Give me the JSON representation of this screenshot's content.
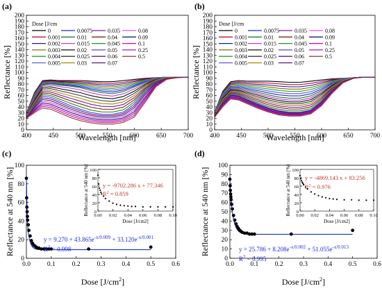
{
  "panels": [
    {
      "label": "(a)"
    },
    {
      "label": "(b)"
    },
    {
      "label": "(c)"
    },
    {
      "label": "(d)"
    }
  ],
  "legend": {
    "title": "Dose [J/cm",
    "title_sup": "2",
    "title_end": "]",
    "entries": [
      "0",
      "0.0075",
      "0.035",
      "0.08",
      "0.001",
      "0.01",
      "0.04",
      "0.09",
      "0.002",
      "0.015",
      "0.045",
      "0.1",
      "0.003",
      "0.02",
      "0.05",
      "0.25",
      "0.004",
      "0.025",
      "0.06",
      "0.5",
      "0.005",
      "0.03",
      "0.07"
    ],
    "colors": [
      "#000000",
      "#1f2bd6",
      "#7a1f9e",
      "#d15ad6",
      "#c0143c",
      "#1f7a3a",
      "#7a2a1a",
      "#1c1c8a",
      "#1a1aa8",
      "#c040c0",
      "#2a8a2a",
      "#e000a0",
      "#8a6a00",
      "#101010",
      "#4a4ad6",
      "#a020a0",
      "#2aa02a",
      "#3a3a3a",
      "#6a1a8a",
      "#a04040",
      "#5a5adc",
      "#a08a00",
      "#5a1a6a"
    ]
  },
  "chart_data": [
    {
      "type": "line",
      "panel": "(a)",
      "xlabel": "Wavelength [nm]",
      "ylabel": "Reflectance [%]",
      "xlim": [
        400,
        700
      ],
      "ylim": [
        0,
        200
      ],
      "xticks": [
        400,
        450,
        500,
        550,
        600,
        650,
        700
      ],
      "yticks": [
        0,
        10,
        20,
        30,
        40,
        50,
        60,
        70,
        80,
        90,
        100,
        110,
        120,
        130,
        140,
        150,
        160,
        170,
        180,
        190,
        200
      ],
      "x": [
        400,
        415,
        430,
        445,
        460,
        480,
        500,
        520,
        540,
        560,
        580,
        600,
        620,
        640,
        660,
        680,
        700
      ],
      "series_summary": "23 reflectance spectra, one per dose",
      "series": [
        {
          "name": "0",
          "values": [
            29,
            65,
            86,
            87,
            86,
            86,
            86,
            85,
            84,
            84,
            86,
            88,
            90,
            91,
            92,
            92,
            92
          ]
        },
        {
          "name": "0.035",
          "values": [
            25,
            55,
            78,
            80,
            78,
            76,
            73,
            68,
            64,
            62,
            66,
            74,
            83,
            89,
            92,
            92,
            92
          ]
        },
        {
          "name": "0.1",
          "values": [
            22,
            42,
            60,
            58,
            52,
            44,
            37,
            31,
            28,
            28,
            32,
            46,
            68,
            84,
            91,
            92,
            92
          ]
        },
        {
          "name": "0.5",
          "values": [
            20,
            30,
            38,
            36,
            30,
            22,
            16,
            12,
            10,
            10,
            13,
            22,
            48,
            75,
            88,
            91,
            92
          ]
        }
      ]
    },
    {
      "type": "line",
      "panel": "(b)",
      "xlabel": "Wavelength [nm]",
      "ylabel": "Reflectance [%]",
      "xlim": [
        400,
        700
      ],
      "ylim": [
        0,
        200
      ],
      "xticks": [
        400,
        450,
        500,
        550,
        600,
        650,
        700
      ],
      "yticks": [
        0,
        10,
        20,
        30,
        40,
        50,
        60,
        70,
        80,
        90,
        100,
        110,
        120,
        130,
        140,
        150,
        160,
        170,
        180,
        190,
        200
      ],
      "x": [
        400,
        415,
        430,
        445,
        460,
        480,
        500,
        520,
        540,
        560,
        580,
        600,
        620,
        640,
        660,
        680,
        700
      ],
      "series_summary": "23 reflectance spectra, one per dose",
      "series": [
        {
          "name": "0",
          "values": [
            31,
            67,
            84,
            86,
            85,
            85,
            85,
            84,
            83,
            83,
            85,
            87,
            89,
            90,
            91,
            92,
            92
          ]
        },
        {
          "name": "0.035",
          "values": [
            28,
            58,
            72,
            72,
            69,
            65,
            60,
            56,
            54,
            54,
            58,
            68,
            80,
            88,
            91,
            92,
            92
          ]
        },
        {
          "name": "0.1",
          "values": [
            25,
            48,
            62,
            60,
            54,
            46,
            39,
            34,
            31,
            31,
            35,
            50,
            70,
            85,
            91,
            92,
            92
          ]
        },
        {
          "name": "0.5",
          "values": [
            22,
            40,
            54,
            52,
            46,
            38,
            31,
            26,
            24,
            24,
            28,
            42,
            64,
            82,
            90,
            92,
            92
          ]
        }
      ]
    },
    {
      "type": "scatter",
      "panel": "(c)",
      "xlabel": "Dose [J/cm",
      "xlabel_sup": "2",
      "xlabel_end": "]",
      "ylabel": "Reflectance at 540 nm [%]",
      "xlim": [
        0,
        0.6
      ],
      "ylim": [
        0,
        100
      ],
      "xticks": [
        "0.0",
        "0.1",
        "0.2",
        "0.3",
        "0.4",
        "0.5",
        "0.6"
      ],
      "yticks": [
        0,
        20,
        40,
        60,
        80,
        100
      ],
      "x": [
        0,
        0.001,
        0.002,
        0.003,
        0.004,
        0.005,
        0.0075,
        0.01,
        0.015,
        0.02,
        0.025,
        0.03,
        0.035,
        0.04,
        0.045,
        0.05,
        0.06,
        0.07,
        0.08,
        0.09,
        0.1,
        0.25,
        0.5
      ],
      "y": [
        86,
        65,
        55,
        50,
        45,
        41,
        36,
        30,
        24,
        19,
        16,
        14,
        13,
        12,
        11,
        11,
        10,
        10,
        10,
        10,
        10,
        10,
        12
      ],
      "fit": {
        "model": "triple exponential",
        "equation_parts": [
          "y = 9.270 + 43.865e",
          "-x/0.009",
          " + 33.120e",
          "-x/0.001"
        ],
        "r2_label": "R",
        "r2_sup": "2",
        "r2_value": " = 0.998",
        "params": {
          "y0": 9.27,
          "a1": 43.865,
          "t1": 0.009,
          "a2": 33.12,
          "t2": 0.001
        }
      },
      "inset": {
        "type": "scatter",
        "xlabel": "Dose [J/cm2]",
        "ylabel": "Reflectance at 540 nm [%]",
        "xlim": [
          0,
          0.1
        ],
        "ylim": [
          0,
          100
        ],
        "xticks": [
          "0.00",
          "0.02",
          "0.04",
          "0.06",
          "0.08",
          "0.10"
        ],
        "yticks": [
          0,
          20,
          40,
          60,
          80,
          100
        ],
        "fit_equation": "y = -9702.286 x + 77.346",
        "r2_label": "R",
        "r2_sup": "2",
        "r2_value": " = 0.859"
      }
    },
    {
      "type": "scatter",
      "panel": "(d)",
      "xlabel": "Dose [J/cm",
      "xlabel_sup": "2",
      "xlabel_end": "]",
      "ylabel": "Reflectance at 540 nm [%]",
      "xlim": [
        0,
        0.6
      ],
      "ylim": [
        0,
        100
      ],
      "xticks": [
        "0.0",
        "0.1",
        "0.2",
        "0.3",
        "0.4",
        "0.5",
        "0.6"
      ],
      "yticks": [
        0,
        10,
        20,
        30,
        40,
        50,
        60,
        70,
        80,
        90,
        100
      ],
      "x": [
        0,
        0.001,
        0.002,
        0.003,
        0.004,
        0.005,
        0.0075,
        0.01,
        0.015,
        0.02,
        0.025,
        0.03,
        0.035,
        0.04,
        0.045,
        0.05,
        0.06,
        0.07,
        0.08,
        0.09,
        0.1,
        0.25,
        0.5
      ],
      "y": [
        85,
        78,
        73,
        69,
        66,
        63,
        58,
        53,
        46,
        41,
        37,
        34,
        32,
        30,
        29,
        28,
        27,
        27,
        26,
        26,
        26,
        26,
        30
      ],
      "fit": {
        "model": "triple exponential",
        "equation_parts": [
          "y = 25.786 + 8.208e",
          "-x/0.002",
          " + 51.055e",
          "-x/0.013"
        ],
        "r2_label": "R",
        "r2_sup": "2",
        "r2_value": " = 0.995",
        "params": {
          "y0": 25.786,
          "a1": 8.208,
          "t1": 0.002,
          "a2": 51.055,
          "t2": 0.013
        }
      },
      "inset": {
        "type": "scatter",
        "xlabel": "Dose [J/cm2]",
        "ylabel": "Reflectance at 540 nm [%]",
        "xlim": [
          0,
          0.1
        ],
        "ylim": [
          0,
          100
        ],
        "xticks": [
          "0.00",
          "0.02",
          "0.04",
          "0.06",
          "0.08",
          "0.10"
        ],
        "yticks": [
          0,
          20,
          40,
          60,
          80,
          100
        ],
        "fit_equation": "y = -4869.143 x + 83.256",
        "r2_label": "R",
        "r2_sup": "2",
        "r2_value": " = 0.976"
      }
    }
  ]
}
